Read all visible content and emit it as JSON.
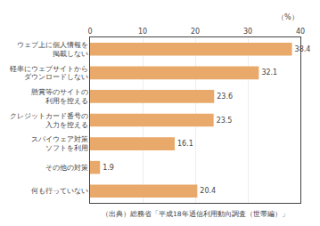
{
  "chart_data": {
    "type": "bar",
    "orientation": "horizontal",
    "categories": [
      "ウェブ上に個人情報を\n掲載しない",
      "軽率にウェブサイトから\nダウンロードしない",
      "懸賞等のサイトの\n利用を控える",
      "クレジットカード番号の\n入力を控える",
      "スパイウェア対策\nソフトを利用",
      "その他の対策",
      "何も行っていない"
    ],
    "values": [
      38.4,
      32.1,
      23.6,
      23.5,
      16.1,
      1.9,
      20.4
    ],
    "color": "#E8A96A",
    "xlim": [
      0,
      40
    ],
    "xticks": [
      0,
      10,
      20,
      30,
      40
    ],
    "xlabel": "（%）",
    "annotations": [
      "（出典）総務省「平成18年通信利用動向調査（世帯編）」"
    ],
    "grid": true,
    "data_labels": true
  }
}
